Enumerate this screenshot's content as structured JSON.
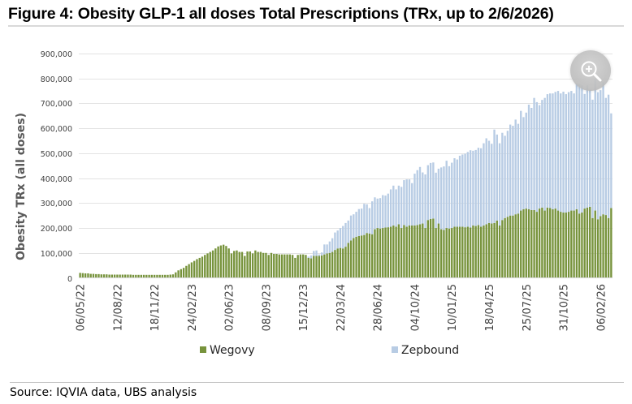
{
  "header": {
    "title": "Figure 4: Obesity GLP-1 all doses Total Prescriptions (TRx, up to 2/6/2026)"
  },
  "footer": {
    "source": "Source: IQVIA data, UBS analysis"
  },
  "overlay": {
    "zoom_button_icon": "zoom-in-icon"
  },
  "chart_data": {
    "type": "bar",
    "stacked": true,
    "title": "Figure 4: Obesity GLP-1 all doses Total Prescriptions (TRx, up to 2/6/2026)",
    "xlabel": "",
    "ylabel": "Obesity TRx (all doses)",
    "ylim": [
      0,
      900000
    ],
    "yticks": [
      0,
      100000,
      200000,
      300000,
      400000,
      500000,
      600000,
      700000,
      800000,
      900000
    ],
    "ytick_labels": [
      "0",
      "100,000",
      "200,000",
      "300,000",
      "400,000",
      "500,000",
      "600,000",
      "700,000",
      "800,000",
      "900,000"
    ],
    "grid": true,
    "legend_position": "bottom",
    "x_frequency": "weekly",
    "x_start": "06/05/22",
    "x_end": "06/02/26",
    "xtick_labels": [
      "06/05/22",
      "12/08/22",
      "18/11/22",
      "24/02/23",
      "02/06/23",
      "08/09/23",
      "15/12/23",
      "22/03/24",
      "28/06/24",
      "04/10/24",
      "10/01/25",
      "18/04/25",
      "25/07/25",
      "31/10/25",
      "06/02/26"
    ],
    "xtick_every_n_weeks": 14,
    "series": [
      {
        "name": "Wegovy",
        "color": "#77933c",
        "values": [
          20000,
          19000,
          18000,
          18000,
          16000,
          16000,
          15000,
          15000,
          14000,
          14000,
          14000,
          13000,
          13000,
          13000,
          13000,
          13000,
          13000,
          13000,
          13000,
          13000,
          12000,
          12000,
          12000,
          12000,
          12000,
          12000,
          12000,
          12000,
          12000,
          12000,
          12000,
          12000,
          12000,
          12000,
          13000,
          14000,
          22000,
          30000,
          35000,
          40000,
          48000,
          55000,
          62000,
          68000,
          75000,
          80000,
          85000,
          92000,
          98000,
          104000,
          110000,
          118000,
          126000,
          130000,
          133000,
          128000,
          118000,
          98000,
          108000,
          110000,
          104000,
          104000,
          88000,
          106000,
          106000,
          98000,
          110000,
          104000,
          104000,
          100000,
          100000,
          92000,
          100000,
          96000,
          96000,
          94000,
          94000,
          94000,
          94000,
          94000,
          92000,
          80000,
          92000,
          94000,
          94000,
          92000,
          80000,
          78000,
          88000,
          88000,
          88000,
          90000,
          94000,
          98000,
          100000,
          104000,
          112000,
          118000,
          120000,
          118000,
          125000,
          140000,
          150000,
          160000,
          165000,
          168000,
          170000,
          172000,
          180000,
          178000,
          175000,
          195000,
          200000,
          198000,
          200000,
          202000,
          203000,
          205000,
          210000,
          205000,
          215000,
          200000,
          212000,
          205000,
          210000,
          210000,
          210000,
          212000,
          215000,
          218000,
          200000,
          232000,
          236000,
          238000,
          200000,
          218000,
          195000,
          192000,
          200000,
          198000,
          200000,
          205000,
          205000,
          205000,
          205000,
          203000,
          205000,
          202000,
          210000,
          208000,
          212000,
          205000,
          210000,
          215000,
          220000,
          218000,
          220000,
          230000,
          210000,
          232000,
          240000,
          245000,
          250000,
          250000,
          255000,
          258000,
          270000,
          275000,
          278000,
          275000,
          272000,
          272000,
          265000,
          278000,
          282000,
          270000,
          282000,
          280000,
          275000,
          278000,
          270000,
          265000,
          262000,
          262000,
          265000,
          270000,
          270000,
          275000,
          258000,
          262000,
          278000,
          282000,
          285000,
          240000,
          270000,
          235000,
          248000,
          255000,
          252000,
          240000,
          280000
        ]
      },
      {
        "name": "Zepbound",
        "color": "#b8cce4",
        "values": [
          0,
          0,
          0,
          0,
          0,
          0,
          0,
          0,
          0,
          0,
          0,
          0,
          0,
          0,
          0,
          0,
          0,
          0,
          0,
          0,
          0,
          0,
          0,
          0,
          0,
          0,
          0,
          0,
          0,
          0,
          0,
          0,
          0,
          0,
          0,
          0,
          0,
          0,
          0,
          0,
          0,
          0,
          0,
          0,
          0,
          0,
          0,
          0,
          0,
          0,
          0,
          0,
          0,
          0,
          0,
          0,
          0,
          0,
          0,
          0,
          0,
          0,
          0,
          0,
          0,
          0,
          0,
          0,
          0,
          0,
          0,
          0,
          0,
          0,
          0,
          0,
          0,
          0,
          0,
          0,
          0,
          0,
          0,
          0,
          0,
          0,
          5000,
          12000,
          20000,
          22000,
          6000,
          12000,
          40000,
          36000,
          46000,
          55000,
          70000,
          72000,
          80000,
          90000,
          95000,
          90000,
          100000,
          95000,
          100000,
          108000,
          108000,
          125000,
          115000,
          102000,
          132000,
          128000,
          118000,
          122000,
          132000,
          128000,
          135000,
          150000,
          160000,
          150000,
          155000,
          165000,
          180000,
          190000,
          185000,
          170000,
          208000,
          220000,
          230000,
          205000,
          215000,
          220000,
          225000,
          225000,
          222000,
          220000,
          248000,
          255000,
          270000,
          250000,
          262000,
          275000,
          270000,
          285000,
          290000,
          295000,
          300000,
          310000,
          300000,
          305000,
          310000,
          315000,
          330000,
          345000,
          330000,
          320000,
          375000,
          345000,
          330000,
          350000,
          330000,
          345000,
          365000,
          360000,
          380000,
          360000,
          400000,
          370000,
          385000,
          420000,
          410000,
          450000,
          440000,
          415000,
          432000,
          452000,
          455000,
          460000,
          465000,
          468000,
          480000,
          475000,
          485000,
          475000,
          480000,
          480000,
          470000,
          505000,
          520000,
          510000,
          460000,
          490000,
          470000,
          475000,
          530000,
          510000,
          505000,
          530000,
          470000,
          495000,
          380000,
          450000,
          480000,
          530000,
          460000,
          480000,
          520000
        ]
      }
    ]
  }
}
